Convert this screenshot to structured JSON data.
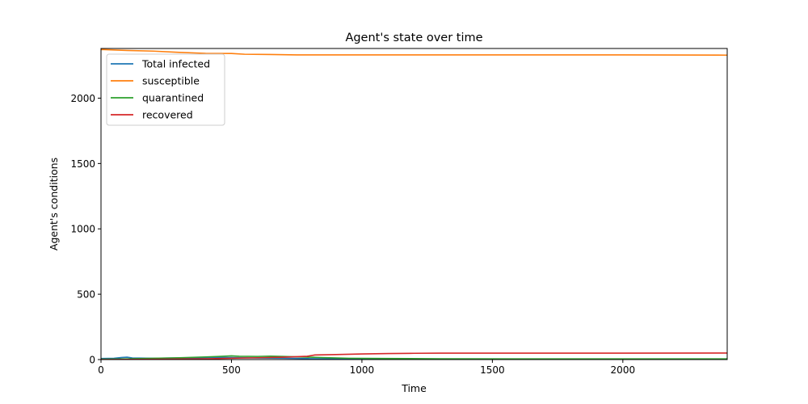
{
  "chart_data": {
    "type": "line",
    "title": "Agent's state over time",
    "xlabel": "Time",
    "ylabel": "Agent's conditions",
    "xlim": [
      0,
      2400
    ],
    "ylim": [
      0,
      2380
    ],
    "x_ticks": [
      0,
      500,
      1000,
      1500,
      2000
    ],
    "y_ticks": [
      0,
      500,
      1000,
      1500,
      2000
    ],
    "grid": false,
    "legend_position": "top-left",
    "series": [
      {
        "name": "Total infected",
        "color": "#1f77b4",
        "points": [
          [
            0,
            8
          ],
          [
            50,
            10
          ],
          [
            80,
            16
          ],
          [
            100,
            18
          ],
          [
            120,
            12
          ],
          [
            200,
            10
          ],
          [
            300,
            12
          ],
          [
            400,
            15
          ],
          [
            440,
            17
          ],
          [
            500,
            15
          ],
          [
            600,
            12
          ],
          [
            700,
            10
          ],
          [
            800,
            7
          ],
          [
            900,
            5
          ],
          [
            1000,
            4
          ],
          [
            1200,
            3
          ],
          [
            1500,
            3
          ],
          [
            2000,
            3
          ],
          [
            2400,
            3
          ]
        ]
      },
      {
        "name": "susceptible",
        "color": "#ff7f0e",
        "points": [
          [
            0,
            2372
          ],
          [
            100,
            2365
          ],
          [
            200,
            2360
          ],
          [
            300,
            2350
          ],
          [
            400,
            2343
          ],
          [
            500,
            2342
          ],
          [
            550,
            2336
          ],
          [
            650,
            2334
          ],
          [
            750,
            2331
          ],
          [
            1000,
            2331
          ],
          [
            1500,
            2331
          ],
          [
            2000,
            2331
          ],
          [
            2400,
            2329
          ]
        ]
      },
      {
        "name": "quarantined",
        "color": "#2ca02c",
        "points": [
          [
            0,
            3
          ],
          [
            100,
            5
          ],
          [
            200,
            10
          ],
          [
            300,
            14
          ],
          [
            400,
            20
          ],
          [
            450,
            24
          ],
          [
            500,
            28
          ],
          [
            530,
            25
          ],
          [
            600,
            24
          ],
          [
            650,
            26
          ],
          [
            700,
            24
          ],
          [
            800,
            18
          ],
          [
            850,
            15
          ],
          [
            950,
            10
          ],
          [
            1100,
            8
          ],
          [
            1300,
            6
          ],
          [
            1600,
            5
          ],
          [
            2000,
            5
          ],
          [
            2400,
            5
          ]
        ]
      },
      {
        "name": "recovered",
        "color": "#d62728",
        "points": [
          [
            0,
            0
          ],
          [
            200,
            2
          ],
          [
            400,
            6
          ],
          [
            500,
            10
          ],
          [
            600,
            14
          ],
          [
            700,
            18
          ],
          [
            790,
            25
          ],
          [
            820,
            35
          ],
          [
            900,
            38
          ],
          [
            1000,
            43
          ],
          [
            1100,
            46
          ],
          [
            1200,
            48
          ],
          [
            1300,
            49
          ],
          [
            1500,
            49
          ],
          [
            2000,
            49
          ],
          [
            2400,
            50
          ]
        ]
      }
    ]
  }
}
